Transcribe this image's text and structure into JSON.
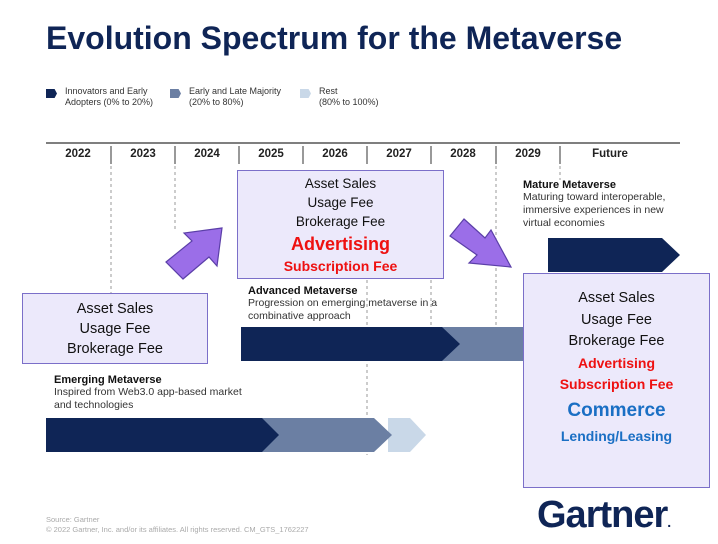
{
  "title": "Evolution Spectrum for the Metaverse",
  "legend": [
    {
      "label": "Innovators and Early",
      "sub": "Adopters (0% to 20%)",
      "color": "#0f2556"
    },
    {
      "label": "Early and Late Majority",
      "sub": "(20% to 80%)",
      "color": "#6b7fa3"
    },
    {
      "label": "Rest",
      "sub": "(80% to 100%)",
      "color": "#c9d8e8"
    }
  ],
  "years": [
    "2022",
    "2023",
    "2024",
    "2025",
    "2026",
    "2027",
    "2028",
    "2029",
    "Future"
  ],
  "boxes": {
    "early": {
      "lines": [
        "Asset Sales",
        "Usage Fee",
        "Brokerage Fee"
      ]
    },
    "mid": {
      "lines": [
        "Asset Sales",
        "Usage Fee",
        "Brokerage Fee"
      ],
      "advertising": "Advertising",
      "subscription": "Subscription Fee"
    },
    "late": {
      "lines": [
        "Asset Sales",
        "Usage Fee",
        "Brokerage Fee"
      ],
      "advertising": "Advertising",
      "subscription": "Subscription Fee",
      "commerce": "Commerce",
      "lending": "Lending/Leasing"
    }
  },
  "stages": {
    "emerging": {
      "title": "Emerging Metaverse",
      "desc": "Inspired from Web3.0 app-based market and technologies"
    },
    "advanced": {
      "title": "Advanced Metaverse",
      "desc": "Progression on emerging metaverse in a combinative approach"
    },
    "mature": {
      "title": "Mature Metaverse",
      "desc": "Maturing toward interoperable, immersive experiences in new virtual economies"
    }
  },
  "colors": {
    "dark": "#0f2556",
    "mid": "#6b7fa3",
    "light": "#c9d8e8",
    "arrow": "#9b6ee8",
    "red": "#ee1111",
    "blue": "#1a6fc4"
  },
  "footer": {
    "source": "Source: Gartner",
    "copyright": "© 2022 Gartner, Inc. and/or its affiliates. All rights reserved. CM_GTS_1762227"
  },
  "logo": "Gartner"
}
